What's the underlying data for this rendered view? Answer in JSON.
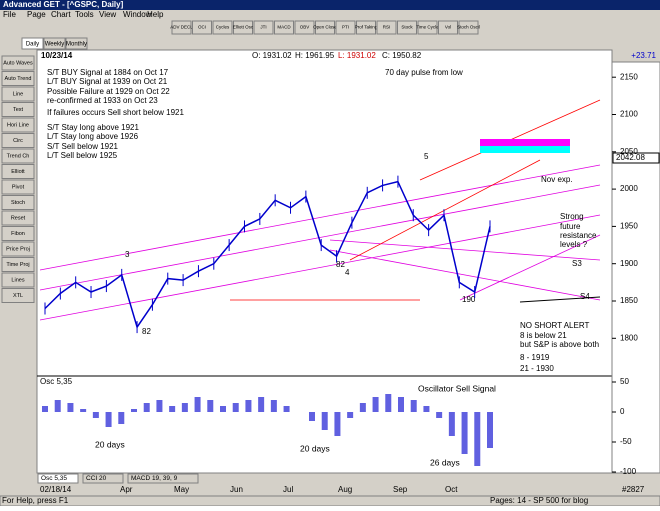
{
  "window": {
    "title": "Advanced GET - [^GSPC, Daily]",
    "menu": [
      "File",
      "Page",
      "Chart",
      "Tools",
      "View",
      "Window",
      "Help"
    ],
    "toolbar": [
      "ADV DECL",
      "OCI",
      "Cycles",
      "Elliott Osc",
      "JTI",
      "MACD",
      "OBV",
      "Open Close",
      "PTI",
      "Prof Taking",
      "RSI",
      "Stock",
      "Time Cycle",
      "Vol",
      "Stoch Oscil"
    ],
    "tabs": [
      "Daily",
      "Weekly",
      "Monthly"
    ]
  },
  "left_toolbar": [
    "Auto Waves",
    "Auto Trend",
    "Line",
    "Text",
    "Hori Line",
    "Circ",
    "Trend Ch",
    "Elliott",
    "Pivot",
    "Stoch",
    "Reset",
    "Fibon",
    "Price Proj",
    "Time Proj",
    "Lines",
    "XTL"
  ],
  "chart": {
    "date": "10/23/14",
    "open": "O: 1931.02",
    "high": "H: 1961.95",
    "low": "L: 1931.02",
    "close": "C: 1950.82",
    "change": "+23.71",
    "price_ticks": [
      2150,
      2100,
      2050,
      2000,
      1950,
      1900,
      1850,
      1800
    ],
    "last_price": "2042.08",
    "closes": [
      1840,
      1860,
      1875,
      1862,
      1870,
      1885,
      1815,
      1845,
      1880,
      1878,
      1890,
      1900,
      1925,
      1950,
      1960,
      1985,
      1975,
      1990,
      1925,
      1910,
      1955,
      1995,
      2005,
      2010,
      1965,
      1945,
      1965,
      1875,
      1862,
      1950
    ],
    "annotations": [
      "S/T BUY Signal at 1884 on Oct 17",
      "L/T BUY Signal at 1939 on Oct 21",
      "Possible Failure at 1929 on Oct 22",
      "re-confirmed at 1933 on Oct 23",
      "If failures occurs Sell short below 1921",
      "S/T Stay long above 1921",
      "L/T Stay long above 1926",
      "S/T Sell below 1921",
      "L/T Sell below 1925",
      "70 day pulse from low",
      "Nov exp.",
      "Strong",
      "future",
      "resistance",
      "levels ?",
      "S3",
      "S4",
      "NO SHORT ALERT",
      "8 is below 21",
      "but S&P is above both",
      "8  - 1919",
      "21 - 1930",
      "82",
      "82",
      "4",
      "3",
      "5",
      "190"
    ]
  },
  "oscillator": {
    "label": "Osc 5,35",
    "ticks": [
      50,
      0,
      -50,
      -100
    ],
    "values": [
      10,
      20,
      15,
      5,
      -10,
      -25,
      -20,
      5,
      15,
      20,
      10,
      15,
      25,
      20,
      10,
      15,
      20,
      25,
      20,
      10,
      0,
      -15,
      -30,
      -40,
      -10,
      15,
      25,
      30,
      25,
      20,
      10,
      -10,
      -40,
      -70,
      -90,
      -60
    ],
    "annotations": [
      "Oscillator Sell Signal",
      "20 days",
      "20 days",
      "26 days"
    ]
  },
  "bottom_tabs": [
    "Osc 5,35",
    "CCI 20",
    "MACD 19, 39, 9"
  ],
  "date_axis": [
    "02/18/14",
    "Apr",
    "May",
    "Jun",
    "Jul",
    "Aug",
    "Sep",
    "Oct"
  ],
  "status": {
    "help": "For Help, press F1",
    "page": "Pages: 14 - SP 500 for blog",
    "count": "#2827"
  }
}
